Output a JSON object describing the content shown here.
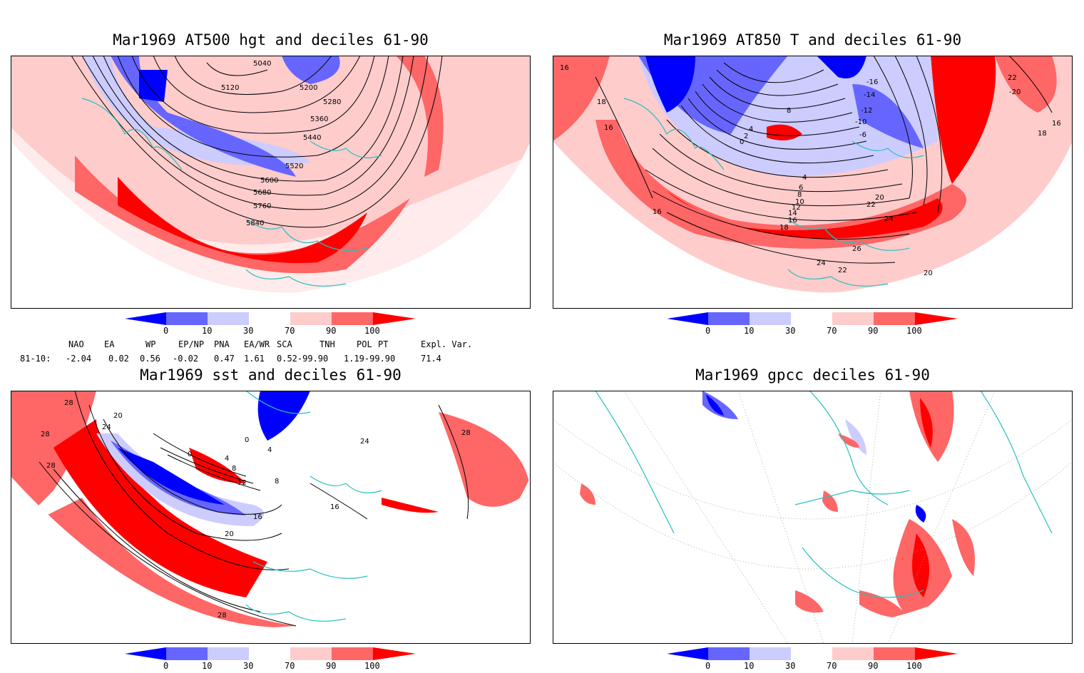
{
  "panels": [
    {
      "id": "p1",
      "title": "Mar1969 AT500 hgt and deciles 61-90",
      "contour_labels": [
        "5040",
        "5120",
        "5200",
        "5280",
        "5360",
        "5440",
        "5520",
        "5600",
        "5680",
        "5760",
        "5840"
      ]
    },
    {
      "id": "p2",
      "title": "Mar1969 AT850 T and deciles 61-90",
      "contour_labels": [
        "16",
        "18",
        "16",
        "0",
        "2",
        "4",
        "8",
        "-16",
        "-14",
        "-12",
        "-10",
        "-6",
        "4",
        "6",
        "8",
        "10",
        "12",
        "14",
        "16",
        "18",
        "20",
        "22",
        "24",
        "26",
        "24",
        "22",
        "20",
        "22",
        "-20",
        "16",
        "18",
        "16"
      ]
    },
    {
      "id": "p3",
      "title": "Mar1969 sst and deciles 61-90",
      "contour_labels": [
        "28",
        "24",
        "20",
        "28",
        "28",
        "0",
        "0",
        "4",
        "4",
        "8",
        "8",
        "12",
        "16",
        "20",
        "16",
        "28",
        "24",
        "28"
      ]
    },
    {
      "id": "p4",
      "title": "Mar1969 gpcc deciles 61-90",
      "contour_labels": []
    }
  ],
  "colorbar": {
    "ticks": [
      "0",
      "10",
      "30",
      "70",
      "90",
      "100"
    ],
    "colors": {
      "dark_blue": "#0000ff",
      "mid_blue": "#6666ff",
      "light_blue": "#ccccff",
      "white": "#ffffff",
      "light_red": "#ffcccc",
      "mid_red": "#ff6666",
      "dark_red": "#ff0000"
    }
  },
  "indices": {
    "headers": [
      "NAO",
      "EA",
      "WP",
      "EP/NP",
      "PNA",
      "EA/WR",
      "SCA",
      "TNH",
      "POL",
      "PT",
      "Expl. Var."
    ],
    "row_label": "81-10:",
    "values": [
      "-2.04",
      "0.02",
      "0.56",
      "-0.02",
      "0.47",
      "1.61",
      "0.52-99.90",
      "",
      "1.19-99.90",
      "",
      "71.4"
    ]
  },
  "map_colors": {
    "coast": "#26bfbf",
    "frame": "#000000",
    "contour": "#000000"
  }
}
